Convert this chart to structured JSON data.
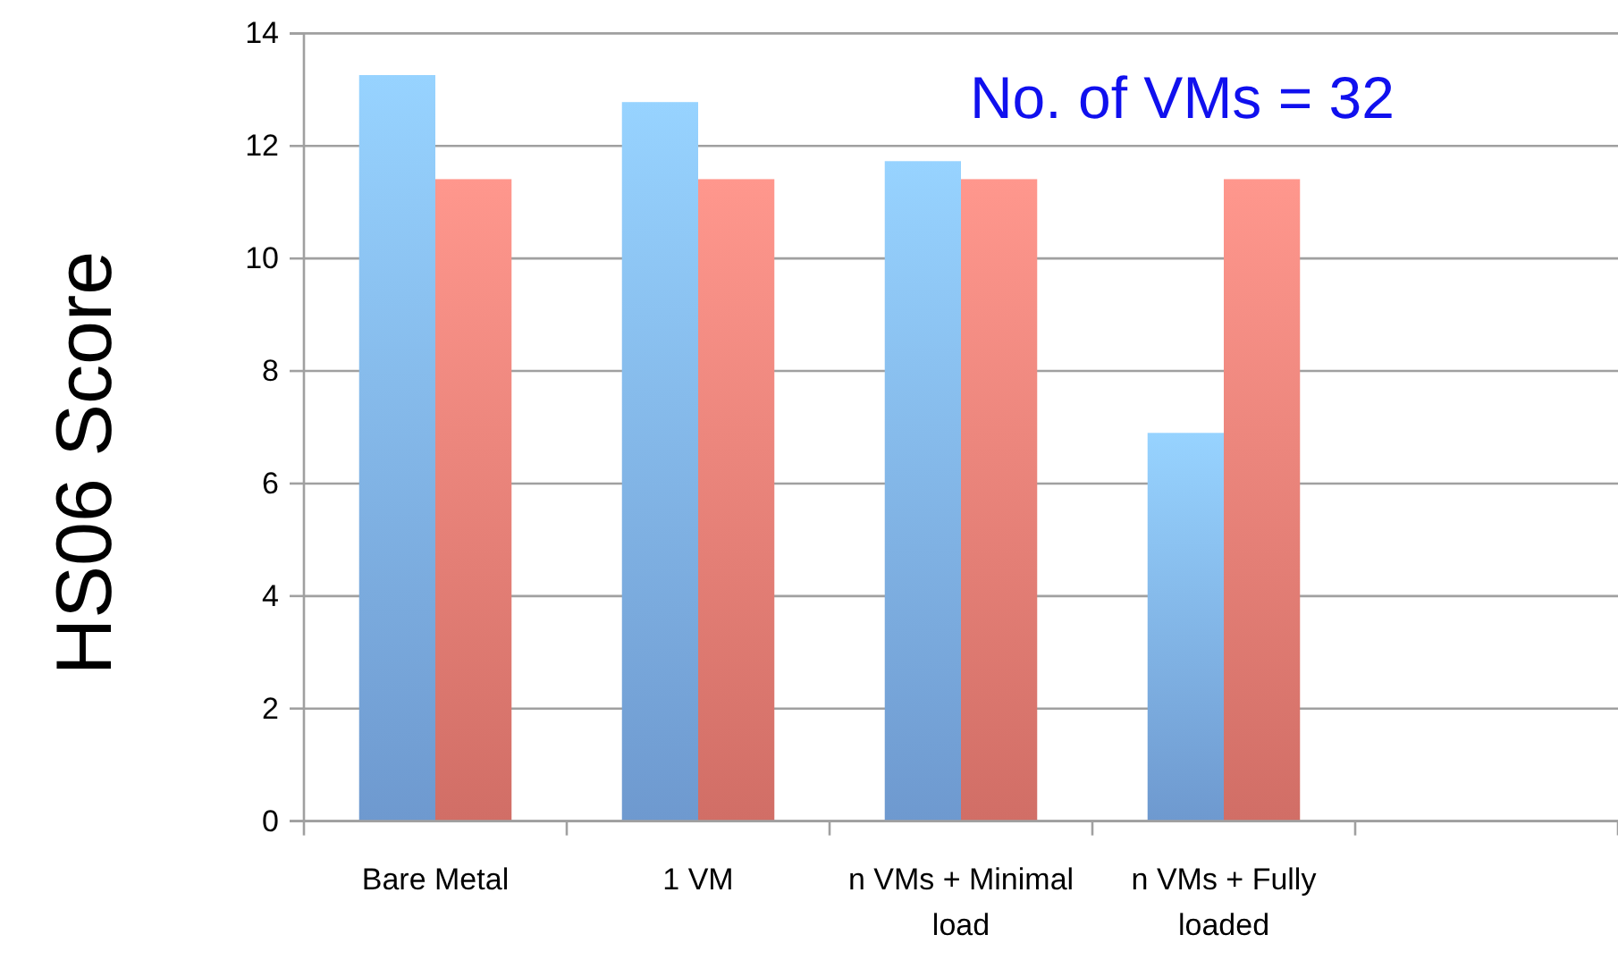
{
  "chart_data": {
    "type": "bar",
    "ylabel": "HS06 Score",
    "categories": [
      "Bare Metal",
      "1 VM",
      "n VMs + Minimal load",
      "n VMs + Fully loaded",
      null
    ],
    "series": [
      {
        "color": "#7aaae6",
        "values": [
          13.26,
          12.78,
          11.73,
          6.9,
          null
        ]
      },
      {
        "color": "#e97a72",
        "values": [
          11.41,
          11.41,
          11.41,
          11.41,
          null
        ]
      }
    ],
    "ylim": [
      0,
      14
    ],
    "yticks": [
      0,
      2,
      4,
      6,
      8,
      10,
      12,
      14
    ],
    "grid": "y",
    "annotations": [
      "No. of VMs = 32"
    ]
  }
}
